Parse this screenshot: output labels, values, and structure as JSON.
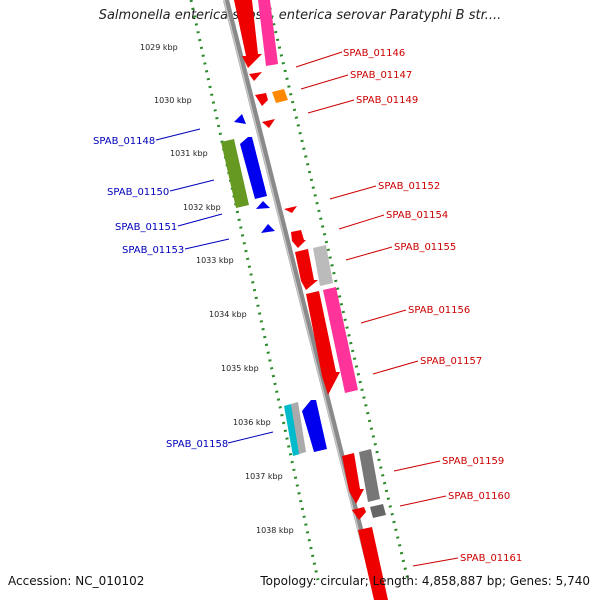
{
  "title": "Salmonella enterica subsp. enterica serovar Paratyphi B str....",
  "footer": {
    "accession": "Accession: NC_010102",
    "info": "Topology: circular; Length: 4,858,887 bp; Genes: 5,740"
  },
  "colors": {
    "backbone": "#8a8a8a",
    "tick": "#2a8a2a",
    "forward_label": "#cc0000",
    "reverse_label": "#0000bb"
  },
  "ticks": [
    "1029 kbp",
    "1030 kbp",
    "1031 kbp",
    "1032 kbp",
    "1033 kbp",
    "1034 kbp",
    "1035 kbp",
    "1036 kbp",
    "1037 kbp",
    "1038 kbp"
  ],
  "forward_labels": [
    "SPAB_01146",
    "SPAB_01147",
    "SPAB_01149",
    "SPAB_01152",
    "SPAB_01154",
    "SPAB_01155",
    "SPAB_01156",
    "SPAB_01157",
    "SPAB_01159",
    "SPAB_01160",
    "SPAB_01161"
  ],
  "reverse_labels": [
    "SPAB_01148",
    "SPAB_01150",
    "SPAB_01151",
    "SPAB_01153",
    "SPAB_01158"
  ]
}
